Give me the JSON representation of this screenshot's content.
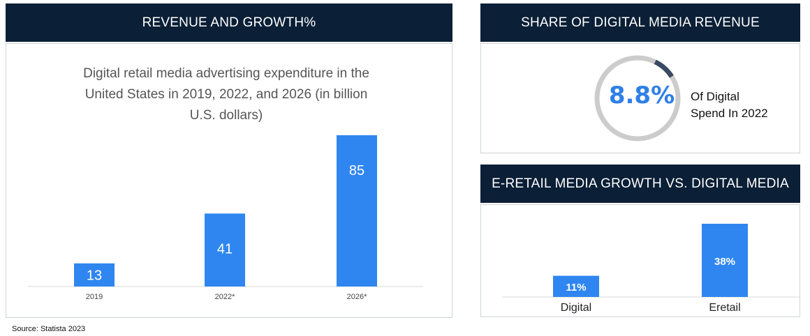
{
  "left_panel": {
    "header": "REVENUE AND GROWTH%"
  },
  "share_panel": {
    "header": "SHARE OF DIGITAL MEDIA REVENUE",
    "value_label": "8.8%",
    "value": 8.8,
    "desc_line1": "Of Digital",
    "desc_line2": "Spend In 2022"
  },
  "growth_panel": {
    "header": "E-RETAIL MEDIA GROWTH VS. DIGITAL MEDIA"
  },
  "source": "Source: Statista 2023",
  "colors": {
    "header_bg": "#0b1f36",
    "bar": "#2f86f0",
    "ring": "#cccccc",
    "ring_accent": "#3a4a63"
  },
  "chart_data": [
    {
      "type": "bar",
      "title": "Digital retail media advertising expenditure in the United States in 2019, 2022, and 2026 (in billion U.S. dollars)",
      "title_lines": [
        "Digital retail media advertising expenditure in the",
        "United States in 2019, 2022, and 2026 (in billion",
        "U.S. dollars)"
      ],
      "categories": [
        "2019",
        "2022*",
        "2026*"
      ],
      "values": [
        13,
        41,
        85
      ],
      "data_labels": [
        "13",
        "41",
        "85"
      ],
      "ylim": [
        0,
        85
      ],
      "grid": false
    },
    {
      "type": "bar",
      "categories": [
        "Digital",
        "Eretail"
      ],
      "values": [
        11,
        38
      ],
      "data_labels": [
        "11%",
        "38%"
      ],
      "ylim": [
        0,
        38
      ],
      "grid": false
    }
  ]
}
